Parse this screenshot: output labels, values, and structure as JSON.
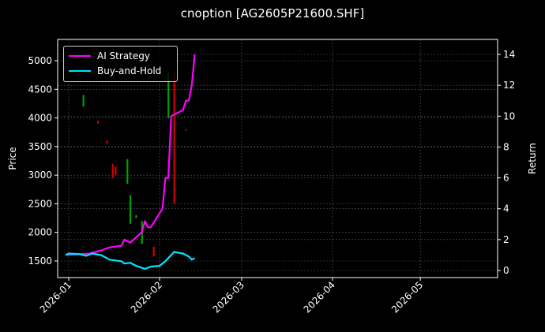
{
  "title": "cnoption [AG2605P21600.SHF]",
  "legend": [
    {
      "label": "AI Strategy",
      "color": "#ff00ff"
    },
    {
      "label": "Buy-and-Hold",
      "color": "#00e5ff"
    }
  ],
  "axes": {
    "ylabel_left": "Price",
    "ylabel_right": "Return",
    "left_ticks": [
      1500,
      2000,
      2500,
      3000,
      3500,
      4000,
      4500,
      5000
    ],
    "right_ticks": [
      0,
      2,
      4,
      6,
      8,
      10,
      12,
      14
    ],
    "x_ticks": [
      "2026-01",
      "2026-02",
      "2026-03",
      "2026-04",
      "2026-05"
    ]
  },
  "chart_data": {
    "type": "line",
    "title": "cnoption [AG2605P21600.SHF]",
    "xlabel": "",
    "ylabel": "Price",
    "ylabel_right": "Return",
    "ylim_left": [
      1250,
      5300
    ],
    "ylim_right": [
      -0.3,
      14.7
    ],
    "x_ticks": [
      "2026-01",
      "2026-02",
      "2026-03",
      "2026-04",
      "2026-05"
    ],
    "grid": true,
    "legend_position": "upper left",
    "series": [
      {
        "name": "AI Strategy",
        "axis": "right",
        "color": "#ff00ff",
        "x": [
          "2025-12-31",
          "2026-01-05",
          "2026-01-08",
          "2026-01-12",
          "2026-01-15",
          "2026-01-19",
          "2026-01-20",
          "2026-01-22",
          "2026-01-26",
          "2026-01-27",
          "2026-01-28",
          "2026-01-29",
          "2026-02-02",
          "2026-02-03",
          "2026-02-04",
          "2026-02-05",
          "2026-02-09",
          "2026-02-10",
          "2026-02-11",
          "2026-02-12",
          "2026-02-13"
        ],
        "values": [
          1.0,
          1.05,
          1.1,
          1.3,
          1.5,
          1.6,
          2.0,
          1.8,
          2.5,
          3.2,
          2.8,
          2.8,
          4.0,
          6.0,
          6.0,
          10.0,
          10.4,
          11.0,
          11.0,
          12.0,
          14.0
        ]
      },
      {
        "name": "Buy-and-Hold",
        "axis": "right",
        "color": "#00e5ff",
        "x": [
          "2025-12-31",
          "2026-01-01",
          "2026-01-05",
          "2026-01-07",
          "2026-01-09",
          "2026-01-12",
          "2026-01-15",
          "2026-01-19",
          "2026-01-20",
          "2026-01-22",
          "2026-01-24",
          "2026-01-27",
          "2026-01-29",
          "2026-02-01",
          "2026-02-03",
          "2026-02-04",
          "2026-02-05",
          "2026-02-06",
          "2026-02-09",
          "2026-02-11",
          "2026-02-12",
          "2026-02-13"
        ],
        "values": [
          1.0,
          1.1,
          1.05,
          0.95,
          1.1,
          1.0,
          0.7,
          0.6,
          0.45,
          0.5,
          0.3,
          0.1,
          0.25,
          0.3,
          0.6,
          0.8,
          1.0,
          1.2,
          1.1,
          0.9,
          0.7,
          0.8
        ]
      },
      {
        "name": "Price candles",
        "axis": "left",
        "type": "candlestick",
        "candles": [
          {
            "x": "2026-01-06",
            "low": 4200,
            "high": 4400,
            "color": "#00a000"
          },
          {
            "x": "2026-01-11",
            "low": 3900,
            "high": 3950,
            "color": "#d00000"
          },
          {
            "x": "2026-01-14",
            "low": 3550,
            "high": 3600,
            "color": "#d00000"
          },
          {
            "x": "2026-01-16",
            "low": 2950,
            "high": 3200,
            "color": "#d00000"
          },
          {
            "x": "2026-01-17",
            "low": 3000,
            "high": 3150,
            "color": "#d00000"
          },
          {
            "x": "2026-01-21",
            "low": 2850,
            "high": 3280,
            "color": "#00a000"
          },
          {
            "x": "2026-01-22",
            "low": 2150,
            "high": 2650,
            "color": "#00a000"
          },
          {
            "x": "2026-01-24",
            "low": 2250,
            "high": 2300,
            "color": "#00a000"
          },
          {
            "x": "2026-01-26",
            "low": 1800,
            "high": 2200,
            "color": "#00a000"
          },
          {
            "x": "2026-01-30",
            "low": 1580,
            "high": 1750,
            "color": "#d00000"
          },
          {
            "x": "2026-02-04",
            "low": 4000,
            "high": 4800,
            "color": "#00a000"
          },
          {
            "x": "2026-02-06",
            "low": 2500,
            "high": 4800,
            "color": "#d00000"
          },
          {
            "x": "2026-02-10",
            "low": 3780,
            "high": 3800,
            "color": "#d00000"
          }
        ]
      }
    ]
  }
}
